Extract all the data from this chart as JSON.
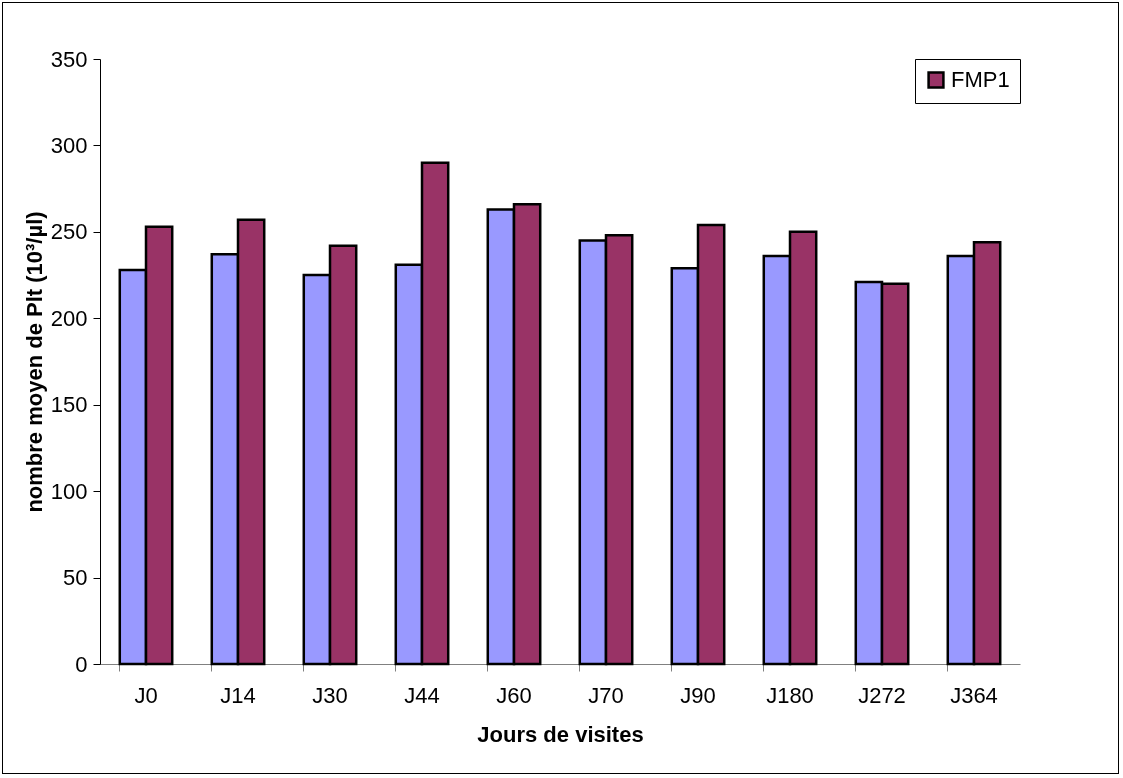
{
  "chart_data": {
    "type": "bar",
    "xlabel": "Jours de visites",
    "ylabel": "nombre moyen de Plt (10³/µl)",
    "categories": [
      "J0",
      "J14",
      "J30",
      "J44",
      "J60",
      "J70",
      "J90",
      "J180",
      "J272",
      "J364"
    ],
    "series": [
      {
        "color": "#9999ff",
        "values": [
          228,
          237,
          225,
          231,
          263,
          245,
          229,
          236,
          221,
          236
        ]
      },
      {
        "name": "FMP1",
        "color": "#993366",
        "values": [
          253,
          257,
          242,
          290,
          266,
          248,
          254,
          250,
          220,
          244
        ]
      }
    ],
    "ylim": [
      0,
      350
    ],
    "yticks": [
      0,
      50,
      100,
      150,
      200,
      250,
      300,
      350
    ],
    "grid": false,
    "legend": "top right"
  }
}
